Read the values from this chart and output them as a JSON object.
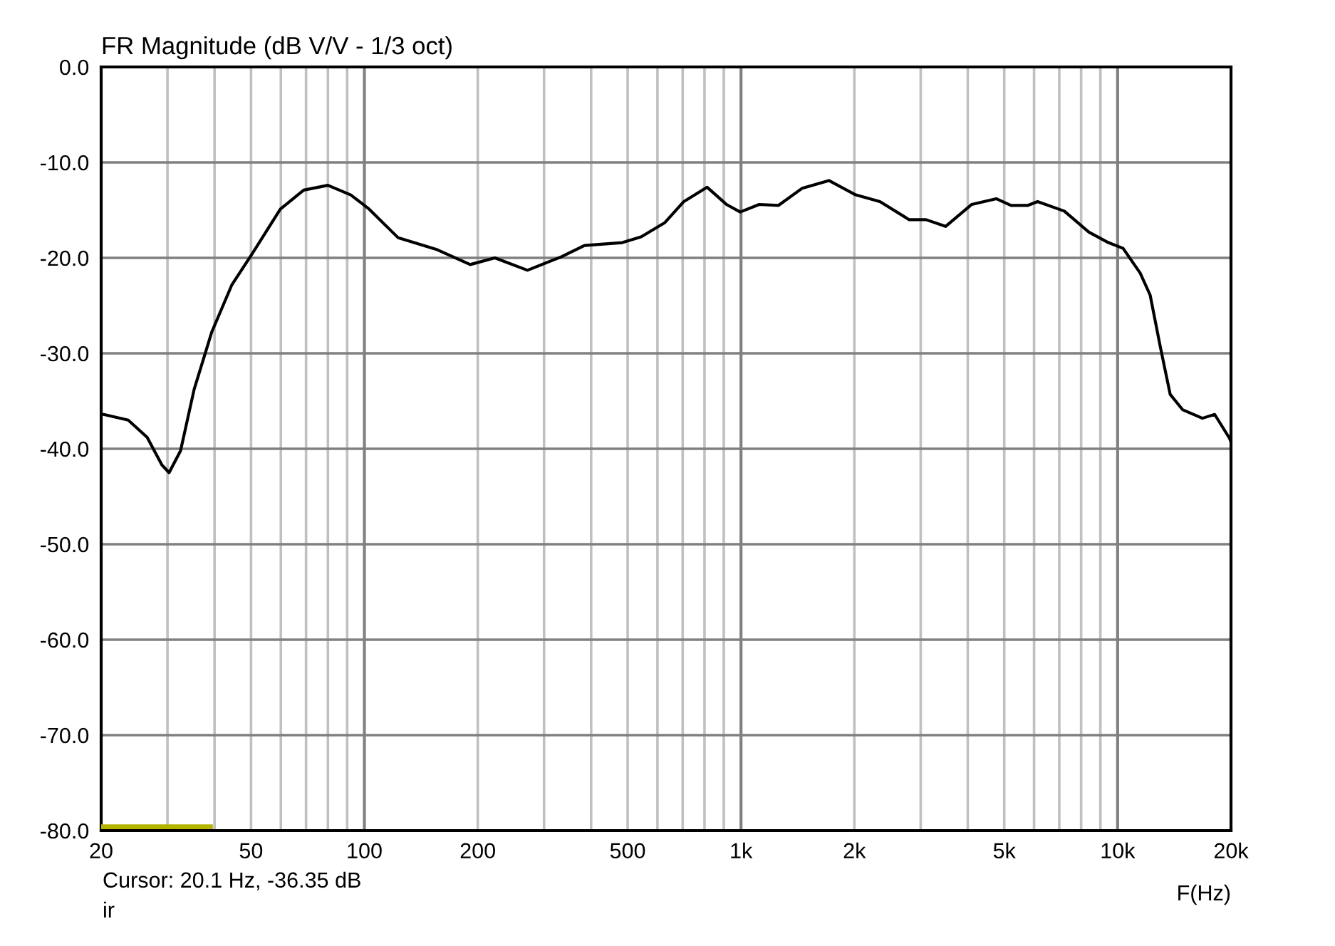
{
  "chart_data": {
    "type": "line",
    "title": "FR Magnitude (dB V/V - 1/3 oct)",
    "xlabel": "F(Hz)",
    "log": "x",
    "grid": true,
    "marker": "none",
    "line_style": "solid",
    "xlim": [
      20,
      20000
    ],
    "ylim": [
      -80,
      0
    ],
    "xticks": [
      20,
      {
        "value": 30,
        "label": null
      },
      {
        "value": 40,
        "label": null
      },
      50,
      {
        "value": 60,
        "label": null
      },
      {
        "value": 70,
        "label": null
      },
      {
        "value": 80,
        "label": null
      },
      {
        "value": 90,
        "label": null
      },
      100,
      200,
      {
        "value": 300,
        "label": null
      },
      {
        "value": 400,
        "label": null
      },
      500,
      {
        "value": 600,
        "label": null
      },
      {
        "value": 700,
        "label": null
      },
      {
        "value": 800,
        "label": null
      },
      {
        "value": 900,
        "label": null
      },
      {
        "value": 1000,
        "label": "1k"
      },
      {
        "value": 2000,
        "label": "2k"
      },
      {
        "value": 3000,
        "label": null
      },
      {
        "value": 4000,
        "label": null
      },
      {
        "value": 5000,
        "label": "5k"
      },
      {
        "value": 6000,
        "label": null
      },
      {
        "value": 7000,
        "label": null
      },
      {
        "value": 8000,
        "label": null
      },
      {
        "value": 9000,
        "label": null
      },
      {
        "value": 10000,
        "label": "10k"
      },
      {
        "value": 20000,
        "label": "20k"
      }
    ],
    "yticks": [
      {
        "value": 0,
        "label": "0.0"
      },
      {
        "value": -10,
        "label": "-10.0"
      },
      {
        "value": -20,
        "label": "-20.0"
      },
      {
        "value": -30,
        "label": "-30.0"
      },
      {
        "value": -40,
        "label": "-40.0"
      },
      {
        "value": -50,
        "label": "-50.0"
      },
      {
        "value": -60,
        "label": "-60.0"
      },
      {
        "value": -70,
        "label": "-70.0"
      },
      {
        "value": -80,
        "label": "-80.0"
      }
    ],
    "annotations": [
      "Cursor: 20.1 Hz, -36.35 dB",
      "ir"
    ],
    "series": [
      {
        "color": "#000000",
        "x": [
          20,
          20.3,
          23.6,
          26.5,
          29,
          30.3,
          32.5,
          35.3,
          39.3,
          44.5,
          50.3,
          59.8,
          69,
          80,
          92,
          103,
          123,
          155,
          191,
          222,
          271,
          333,
          384,
          484,
          543,
          628,
          705,
          813,
          915,
          995,
          1118,
          1258,
          1455,
          1712,
          2016,
          2338,
          2795,
          3100,
          3493,
          4100,
          4760,
          5210,
          5780,
          6130,
          7220,
          8390,
          9450,
          10340,
          11480,
          12200,
          12980,
          13790,
          14870,
          16790,
          18100,
          19820,
          20000
        ],
        "values": [
          -36.4,
          -36.4,
          -37.0,
          -38.8,
          -41.7,
          -42.5,
          -40.2,
          -33.8,
          -27.8,
          -22.8,
          -19.6,
          -14.9,
          -12.9,
          -12.4,
          -13.4,
          -14.9,
          -17.9,
          -19.1,
          -20.7,
          -20.0,
          -21.3,
          -19.9,
          -18.7,
          -18.4,
          -17.8,
          -16.3,
          -14.1,
          -12.6,
          -14.4,
          -15.2,
          -14.4,
          -14.5,
          -12.7,
          -11.9,
          -13.4,
          -14.1,
          -16.0,
          -16.0,
          -16.7,
          -14.4,
          -13.8,
          -14.5,
          -14.5,
          -14.1,
          -15.1,
          -17.3,
          -18.4,
          -19.0,
          -21.6,
          -23.9,
          -29.3,
          -34.3,
          -35.9,
          -36.8,
          -36.4,
          -38.9,
          -39.3
        ]
      },
      {
        "color": "#b4b400",
        "x": [
          20,
          39
        ],
        "values": [
          -79.6,
          -79.6
        ]
      }
    ]
  }
}
